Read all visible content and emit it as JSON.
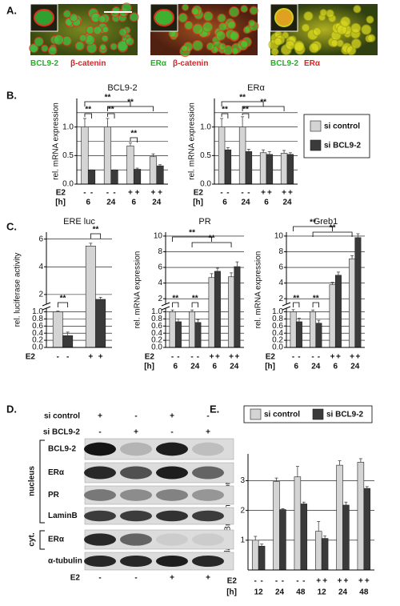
{
  "panel_labels": [
    "A.",
    "B.",
    "C.",
    "D.",
    "E."
  ],
  "panel_a": {
    "captions": [
      {
        "green": "BCL9-2",
        "red": "β-catenin"
      },
      {
        "green": "ERα",
        "red": "β-catenin"
      },
      {
        "green": "BCL9-2",
        "red": "ERα"
      }
    ]
  },
  "panel_d": {
    "treatments": [
      {
        "label": "si control",
        "marks": [
          "+",
          "-",
          "+",
          "-"
        ]
      },
      {
        "label": "si BCL9-2",
        "marks": [
          "-",
          "+",
          "-",
          "+"
        ]
      },
      {
        "label": "E2",
        "marks": [
          "-",
          "-",
          "+",
          "+"
        ]
      }
    ],
    "proteins": [
      "BCL9-2",
      "ERα",
      "PR",
      "LaminB",
      "ERα",
      "α-tubulin"
    ],
    "fractions": [
      "nucleus",
      "cyt."
    ]
  },
  "chart_data": [
    {
      "type": "bar",
      "title": "BCL9-2",
      "ylabel": "rel. mRNA expression",
      "categories": [
        "6",
        "24",
        "6",
        "24"
      ],
      "hours_label": "[h]",
      "e2_label": "E2",
      "e2": [
        "-",
        "-",
        "-",
        "-",
        "+",
        "+",
        "+",
        "+"
      ],
      "series": [
        {
          "name": "si control",
          "color": "#d4d4d4",
          "values": [
            1.0,
            1.0,
            0.67,
            0.48
          ],
          "errors": [
            0.15,
            0.15,
            0.05,
            0.05
          ]
        },
        {
          "name": "si BCL9-2",
          "color": "#3a3a3a",
          "values": [
            0.24,
            0.24,
            0.26,
            0.32
          ],
          "errors": [
            0.01,
            0.01,
            0.02,
            0.02
          ]
        }
      ],
      "ylim": [
        0,
        1.5
      ],
      "yticks": [
        {
          "value": 0,
          "label": "0.0"
        },
        0.5,
        {
          "value": 1,
          "label": "1.0"
        }
      ],
      "yminor": [
        0.25,
        0.75,
        1.25
      ],
      "grid": true,
      "annotations": [
        "**",
        "**",
        "**",
        "**",
        "**"
      ]
    },
    {
      "type": "bar",
      "title": "ERα",
      "ylabel": "rel. mRNA expression",
      "categories": [
        "6",
        "24",
        "6",
        "24"
      ],
      "hours_label": "[h]",
      "e2_label": "E2",
      "e2": [
        "-",
        "-",
        "-",
        "-",
        "+",
        "+",
        "+",
        "+"
      ],
      "series": [
        {
          "color": "#d4d4d4",
          "values": [
            1.0,
            1.0,
            0.55,
            0.54
          ],
          "errors": [
            0.15,
            0.18,
            0.05,
            0.05
          ]
        },
        {
          "color": "#3a3a3a",
          "values": [
            0.6,
            0.57,
            0.52,
            0.52
          ],
          "errors": [
            0.04,
            0.04,
            0.05,
            0.03
          ]
        }
      ],
      "ylim": [
        0,
        1.5
      ],
      "yticks": [
        {
          "value": 0,
          "label": "0.0"
        },
        0.5,
        {
          "value": 1,
          "label": "1.0"
        }
      ],
      "yminor": [
        0.25,
        0.75,
        1.25
      ],
      "grid": true,
      "annotations": [
        "**",
        "**",
        "**",
        "**"
      ]
    },
    {
      "type": "bar",
      "title": "ERE luc",
      "ylabel": "rel. luciferase activity",
      "e2_label": "E2",
      "e2": [
        "-",
        "-",
        "+",
        "+"
      ],
      "series": [
        {
          "color": "#d4d4d4",
          "values": [
            1.0,
            5.5
          ],
          "errors": [
            0.02,
            0.2
          ]
        },
        {
          "color": "#3a3a3a",
          "values": [
            0.33,
            1.65
          ],
          "errors": [
            0.1,
            0.15
          ]
        }
      ],
      "ylim": [
        0,
        6.5
      ],
      "ybreak": [
        1.1,
        1.3
      ],
      "yticks": [
        {
          "value": 0,
          "label": "0.0"
        },
        0.2,
        0.4,
        0.6,
        0.8,
        {
          "value": 1,
          "label": "1.0"
        },
        2,
        4,
        6
      ],
      "grid": true,
      "annotations": [
        "**",
        "**"
      ]
    },
    {
      "type": "bar",
      "title": "PR",
      "ylabel": "rel. mRNA expression",
      "categories": [
        "6",
        "24",
        "6",
        "24"
      ],
      "hours_label": "[h]",
      "e2_label": "E2",
      "e2": [
        "-",
        "-",
        "-",
        "-",
        "+",
        "+",
        "+",
        "+"
      ],
      "series": [
        {
          "color": "#d4d4d4",
          "values": [
            1.0,
            1.0,
            4.7,
            4.8
          ],
          "errors": [
            0.05,
            0.05,
            0.5,
            0.5
          ]
        },
        {
          "color": "#3a3a3a",
          "values": [
            0.72,
            0.7,
            5.5,
            6.1
          ],
          "errors": [
            0.08,
            0.08,
            0.4,
            0.6
          ]
        }
      ],
      "ylim": [
        0,
        10.5
      ],
      "ybreak": [
        1.1,
        1.3
      ],
      "yticks": [
        {
          "value": 0,
          "label": "0.0"
        },
        0.2,
        0.4,
        0.6,
        0.8,
        {
          "value": 1,
          "label": "1.0"
        },
        2,
        4,
        6,
        8,
        10
      ],
      "grid": true,
      "annotations": [
        "**",
        "**",
        "**",
        "**"
      ]
    },
    {
      "type": "bar",
      "title": "Greb1",
      "ylabel": "rel. mRNA expression",
      "categories": [
        "6",
        "24",
        "6",
        "24"
      ],
      "hours_label": "[h]",
      "e2_label": "E2",
      "e2": [
        "-",
        "-",
        "-",
        "-",
        "+",
        "+",
        "+",
        "+"
      ],
      "series": [
        {
          "color": "#d4d4d4",
          "values": [
            1.0,
            1.0,
            3.8,
            7.1
          ],
          "errors": [
            0.06,
            0.05,
            0.3,
            0.4
          ]
        },
        {
          "color": "#3a3a3a",
          "values": [
            0.72,
            0.68,
            5.0,
            9.8
          ],
          "errors": [
            0.1,
            0.08,
            0.4,
            0.5
          ]
        }
      ],
      "ylim": [
        0,
        10.5
      ],
      "ybreak": [
        1.1,
        1.3
      ],
      "yticks": [
        {
          "value": 0,
          "label": "0.0"
        },
        0.2,
        0.4,
        0.6,
        0.8,
        {
          "value": 1,
          "label": "1.0"
        },
        2,
        4,
        6,
        8,
        10
      ],
      "grid": true,
      "annotations": [
        "**",
        "**",
        "**",
        "**"
      ]
    },
    {
      "type": "bar",
      "ylabel": "relative BrdU incorporation",
      "categories": [
        "12",
        "24",
        "48",
        "12",
        "24",
        "48"
      ],
      "hours_label": "[h]",
      "e2_label": "E2",
      "e2": [
        "-",
        "-",
        "-",
        "-",
        "-",
        "-",
        "+",
        "+",
        "+",
        "+",
        "+",
        "+"
      ],
      "series": [
        {
          "name": "si control",
          "color": "#d4d4d4",
          "values": [
            1.0,
            2.97,
            3.13,
            1.3,
            3.52,
            3.62
          ],
          "errors": [
            0.13,
            0.12,
            0.35,
            0.33,
            0.15,
            0.12
          ]
        },
        {
          "name": "si BCL9-2",
          "color": "#3a3a3a",
          "values": [
            0.8,
            2.03,
            2.22,
            1.06,
            2.18,
            2.74
          ],
          "errors": [
            0.07,
            0.03,
            0.06,
            0.08,
            0.1,
            0.06
          ]
        }
      ],
      "ylim": [
        0,
        3.9
      ],
      "yticks": [
        1,
        2,
        3
      ],
      "grid": true
    }
  ]
}
